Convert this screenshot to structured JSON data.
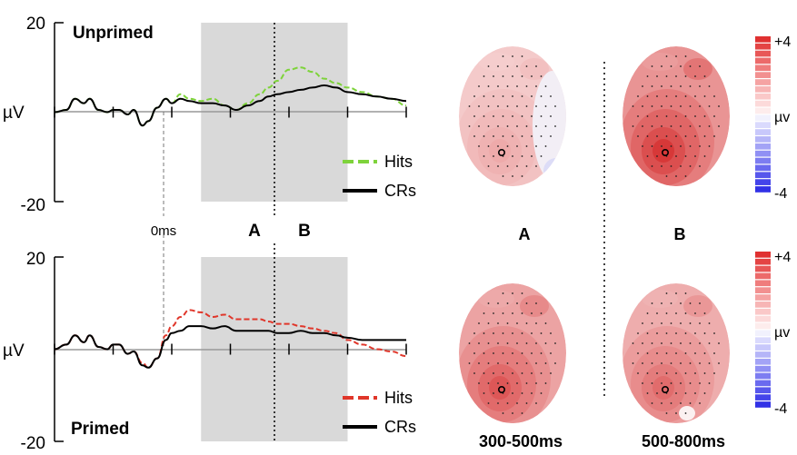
{
  "chart_data": [
    {
      "type": "line",
      "title": "Unprimed",
      "ylabel": "µV",
      "yticks": [
        "20",
        "-20"
      ],
      "ylim": [
        -20,
        20
      ],
      "xlim": [
        -200,
        1000
      ],
      "x_marker_label": "0ms",
      "windows": [
        {
          "label": "A",
          "range": [
            300,
            500
          ]
        },
        {
          "label": "B",
          "range": [
            500,
            800
          ]
        }
      ],
      "window_divider": 500,
      "legend": {
        "position": "right",
        "entries": [
          "Hits",
          "CRs"
        ]
      },
      "series": [
        {
          "name": "Hits",
          "color": "#7ed33b",
          "dashed": true,
          "x": [
            -200,
            -160,
            -130,
            -100,
            -80,
            -50,
            -20,
            0,
            20,
            50,
            70,
            100,
            120,
            150,
            180,
            200,
            230,
            260,
            300,
            340,
            380,
            420,
            460,
            500,
            530,
            560,
            600,
            640,
            680,
            720,
            760,
            800,
            850,
            900,
            950,
            1000
          ],
          "y": [
            0,
            0.5,
            3,
            2,
            3,
            0.5,
            0,
            0.5,
            0.5,
            -0.5,
            0.5,
            -3,
            -2,
            1,
            3,
            2,
            4,
            3,
            2.5,
            3,
            1.5,
            0.5,
            2,
            4,
            5.5,
            7,
            9.5,
            10,
            9,
            7.5,
            6.5,
            5.5,
            4.5,
            3.5,
            3,
            1.5
          ]
        },
        {
          "name": "CRs",
          "color": "#000000",
          "dashed": false,
          "x": [
            -200,
            -160,
            -130,
            -100,
            -80,
            -50,
            -20,
            0,
            20,
            50,
            70,
            100,
            120,
            150,
            180,
            200,
            230,
            260,
            300,
            340,
            380,
            420,
            460,
            500,
            530,
            560,
            600,
            640,
            680,
            720,
            760,
            800,
            850,
            900,
            950,
            1000
          ],
          "y": [
            0,
            0.5,
            3,
            2,
            3,
            0.5,
            0,
            0.5,
            0.5,
            -0.5,
            0.5,
            -3,
            -2,
            1,
            3,
            2,
            3,
            2.5,
            2,
            2,
            1.5,
            0.5,
            1.5,
            2.5,
            3.5,
            4,
            4.5,
            5,
            5.5,
            6,
            5.5,
            4.5,
            4,
            3.5,
            3,
            2.5
          ]
        }
      ]
    },
    {
      "type": "line",
      "title": "Primed",
      "ylabel": "µV",
      "yticks": [
        "20",
        "-20"
      ],
      "ylim": [
        -20,
        20
      ],
      "xlim": [
        -200,
        1000
      ],
      "windows": [
        {
          "label": "",
          "range": [
            300,
            500
          ]
        },
        {
          "label": "",
          "range": [
            500,
            800
          ]
        }
      ],
      "window_divider": 500,
      "legend": {
        "position": "right",
        "entries": [
          "Hits",
          "CRs"
        ]
      },
      "series": [
        {
          "name": "Hits",
          "color": "#e0362a",
          "dashed": true,
          "x": [
            -200,
            -160,
            -130,
            -100,
            -80,
            -50,
            -20,
            0,
            20,
            50,
            70,
            100,
            120,
            150,
            180,
            200,
            230,
            260,
            300,
            340,
            380,
            420,
            460,
            500,
            530,
            560,
            600,
            640,
            680,
            720,
            760,
            800,
            850,
            900,
            950,
            1000
          ],
          "y": [
            0,
            1,
            3,
            1.5,
            3,
            0.5,
            0,
            1,
            1,
            -1,
            -0.5,
            -3,
            -4,
            -2,
            3,
            5,
            7,
            8.5,
            8,
            7,
            7.5,
            6.5,
            6.5,
            6.5,
            6,
            5.5,
            5.5,
            5,
            4.5,
            4,
            3.5,
            2,
            1,
            0,
            -0.5,
            -1.5
          ]
        },
        {
          "name": "CRs",
          "color": "#000000",
          "dashed": false,
          "x": [
            -200,
            -160,
            -130,
            -100,
            -80,
            -50,
            -20,
            0,
            20,
            50,
            70,
            100,
            120,
            150,
            180,
            200,
            230,
            260,
            300,
            340,
            380,
            420,
            460,
            500,
            530,
            560,
            600,
            640,
            680,
            720,
            760,
            800,
            850,
            900,
            950,
            1000
          ],
          "y": [
            0,
            1,
            3,
            1.5,
            3,
            0.5,
            0,
            1,
            1,
            -1,
            -0.5,
            -3.5,
            -4,
            -2,
            2,
            3.5,
            4,
            5,
            5,
            4.5,
            5,
            4,
            4,
            4,
            4,
            3.5,
            3.5,
            4,
            3.5,
            3.5,
            3,
            2.5,
            2,
            2,
            2,
            2
          ]
        }
      ]
    },
    {
      "type": "heatmap",
      "subtype": "scalp-topography",
      "column_labels": [
        "A",
        "B"
      ],
      "time_labels": [
        "300-500ms",
        "500-800ms"
      ],
      "colorbar": {
        "max_label": "+4",
        "mid_label": "µv",
        "min_label": "-4",
        "colors": [
          "#e03131",
          "#e44444",
          "#e85757",
          "#ec6a6a",
          "#ef7d7d",
          "#f29090",
          "#f5a3a3",
          "#f7b5b5",
          "#fac8c8",
          "#fcdada",
          "#fdecec",
          "#f1f1fd",
          "#dadafd",
          "#c8c8fb",
          "#b5b5f8",
          "#a3a3f6",
          "#9090f4",
          "#7d7df1",
          "#6a6aef",
          "#5757ec",
          "#4444ea",
          "#3131e6"
        ]
      },
      "maps": [
        {
          "condition": "Unprimed",
          "window": "A",
          "intensity": 0.3
        },
        {
          "condition": "Unprimed",
          "window": "B",
          "intensity": 0.85
        },
        {
          "condition": "Primed",
          "window": "A",
          "intensity": 0.7
        },
        {
          "condition": "Primed",
          "window": "B",
          "intensity": 0.6
        }
      ]
    }
  ]
}
